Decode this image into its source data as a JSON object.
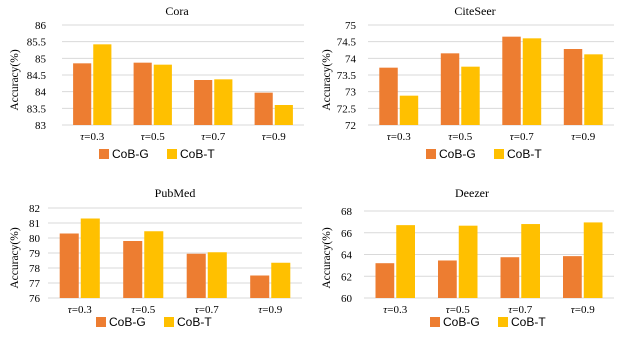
{
  "colors": {
    "CoB-G": "#ED7D31",
    "CoB-T": "#FFC000",
    "grid": "#D9D9D9"
  },
  "chart_data": [
    {
      "type": "bar",
      "title": "Cora",
      "categories": [
        "τ=0.3",
        "τ=0.5",
        "τ=0.7",
        "τ=0.9"
      ],
      "ylabel": "Accuracy(%)",
      "ylim": [
        83,
        86
      ],
      "yticks": [
        "83",
        "83.5",
        "84",
        "84.5",
        "85",
        "85.5",
        "86"
      ],
      "ytick_values": [
        83,
        83.5,
        84,
        84.5,
        85,
        85.5,
        86
      ],
      "grid": true,
      "legend": "bottom",
      "series": [
        {
          "name": "CoB-G",
          "values": [
            84.85,
            84.87,
            84.35,
            83.97
          ]
        },
        {
          "name": "CoB-T",
          "values": [
            85.42,
            84.81,
            84.37,
            83.6
          ]
        }
      ]
    },
    {
      "type": "bar",
      "title": "CiteSeer",
      "categories": [
        "τ=0.3",
        "τ=0.5",
        "τ=0.7",
        "τ=0.9"
      ],
      "ylabel": "Accuracy(%)",
      "ylim": [
        72,
        75
      ],
      "yticks": [
        "72",
        "72.5",
        "73",
        "73.5",
        "74",
        "74.5",
        "75"
      ],
      "ytick_values": [
        72,
        72.5,
        73,
        73.5,
        74,
        74.5,
        75
      ],
      "grid": true,
      "legend": "bottom",
      "series": [
        {
          "name": "CoB-G",
          "values": [
            73.72,
            74.15,
            74.65,
            74.28
          ]
        },
        {
          "name": "CoB-T",
          "values": [
            72.88,
            73.75,
            74.6,
            74.12
          ]
        }
      ]
    },
    {
      "type": "bar",
      "title": "PubMed",
      "categories": [
        "τ=0.3",
        "τ=0.5",
        "τ=0.7",
        "τ=0.9"
      ],
      "ylabel": "Accuracy(%)",
      "ylim": [
        76,
        82
      ],
      "yticks": [
        "76",
        "77",
        "78",
        "79",
        "80",
        "81",
        "82"
      ],
      "ytick_values": [
        76,
        77,
        78,
        79,
        80,
        81,
        82
      ],
      "grid": true,
      "legend": "bottom",
      "series": [
        {
          "name": "CoB-G",
          "values": [
            80.3,
            79.8,
            78.95,
            77.5
          ]
        },
        {
          "name": "CoB-T",
          "values": [
            81.3,
            80.45,
            79.05,
            78.35
          ]
        }
      ]
    },
    {
      "type": "bar",
      "title": "Deezer",
      "categories": [
        "τ=0.3",
        "τ=0.5",
        "τ=0.7",
        "τ=0.9"
      ],
      "ylabel": "Accuracy(%)",
      "ylim": [
        60,
        68
      ],
      "yticks": [
        "60",
        "62",
        "64",
        "66",
        "68"
      ],
      "ytick_values": [
        60,
        62,
        64,
        66,
        68
      ],
      "grid": true,
      "legend": "bottom",
      "series": [
        {
          "name": "CoB-G",
          "values": [
            63.2,
            63.45,
            63.75,
            63.85
          ]
        },
        {
          "name": "CoB-T",
          "values": [
            66.7,
            66.65,
            66.8,
            66.95
          ]
        }
      ]
    }
  ]
}
